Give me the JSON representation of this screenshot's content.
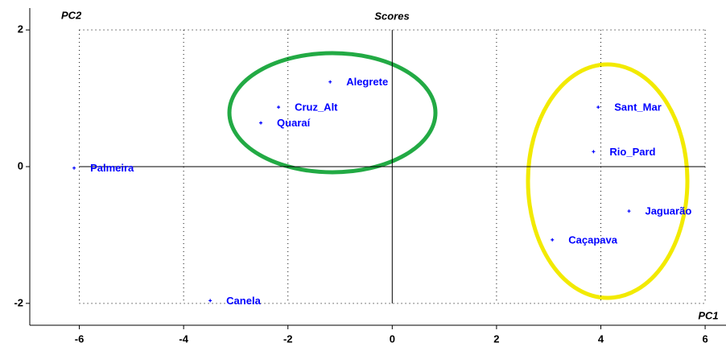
{
  "chart_data": {
    "type": "scatter",
    "title": "Scores",
    "x_label": "PC1",
    "y_label": "PC2",
    "labels": [
      "Palmeira",
      "Canela",
      "Quaraí",
      "Cruz_Alt",
      "Alegrete",
      "Sant_Mar",
      "Rio_Pard",
      "Jaguarão",
      "Caçapava"
    ],
    "series": [
      {
        "color": "#0000ff",
        "x": [
          -6.1,
          -3.49,
          -2.52,
          -2.18,
          -1.19,
          3.95,
          3.86,
          4.54,
          3.07
        ],
        "values": [
          -0.02,
          -1.96,
          0.64,
          0.87,
          1.24,
          0.87,
          0.22,
          -0.65,
          -1.07
        ]
      }
    ],
    "xlim": [
      -6.95,
      6.4
    ],
    "ylim": [
      -2.32,
      2.32
    ],
    "xticks": [
      -6,
      -4,
      -2,
      0,
      2,
      4,
      6
    ],
    "yticks": [
      -2,
      0,
      2
    ],
    "grid": true
  }
}
